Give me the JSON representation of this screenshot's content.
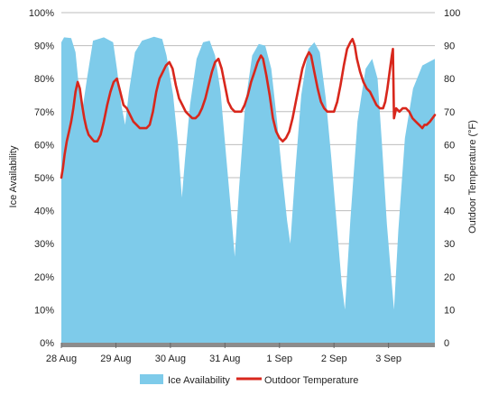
{
  "chart_data": {
    "type": "area",
    "title": "",
    "xlabel": "",
    "ylabel_left": "Ice Availability",
    "ylabel_right": "Outdoor Temperature (°F)",
    "left_ticks": [
      "0%",
      "10%",
      "20%",
      "30%",
      "40%",
      "50%",
      "60%",
      "70%",
      "80%",
      "90%",
      "100%"
    ],
    "right_ticks": [
      "0",
      "10",
      "20",
      "30",
      "40",
      "50",
      "60",
      "70",
      "80",
      "90",
      "100"
    ],
    "ylim_left": [
      0,
      100
    ],
    "ylim_right": [
      0,
      100
    ],
    "x_range_days": [
      0,
      6.85
    ],
    "x_ticks": [
      {
        "label": "28 Aug",
        "day": 0
      },
      {
        "label": "29 Aug",
        "day": 1
      },
      {
        "label": "30 Aug",
        "day": 2
      },
      {
        "label": "31 Aug",
        "day": 3
      },
      {
        "label": "1 Sep",
        "day": 4
      },
      {
        "label": "2 Sep",
        "day": 5
      },
      {
        "label": "3 Sep",
        "day": 6
      }
    ],
    "grid": true,
    "legend_position": "bottom",
    "series": [
      {
        "name": "Ice Availability",
        "kind": "area",
        "color": "#7ecbea",
        "axis": "left",
        "points": [
          [
            0.0,
            91
          ],
          [
            0.05,
            92.5
          ],
          [
            0.18,
            92.3
          ],
          [
            0.26,
            88
          ],
          [
            0.33,
            76
          ],
          [
            0.38,
            70
          ],
          [
            0.47,
            80
          ],
          [
            0.58,
            91.5
          ],
          [
            0.78,
            92.5
          ],
          [
            0.95,
            91
          ],
          [
            1.02,
            83
          ],
          [
            1.1,
            72
          ],
          [
            1.17,
            66
          ],
          [
            1.24,
            76
          ],
          [
            1.35,
            88
          ],
          [
            1.48,
            91.5
          ],
          [
            1.7,
            92.7
          ],
          [
            1.85,
            92
          ],
          [
            1.93,
            87
          ],
          [
            2.05,
            75
          ],
          [
            2.14,
            60
          ],
          [
            2.21,
            44
          ],
          [
            2.27,
            56
          ],
          [
            2.36,
            72
          ],
          [
            2.48,
            86
          ],
          [
            2.6,
            91
          ],
          [
            2.72,
            91.5
          ],
          [
            2.82,
            87
          ],
          [
            2.92,
            76
          ],
          [
            3.02,
            57
          ],
          [
            3.11,
            40
          ],
          [
            3.18,
            26
          ],
          [
            3.26,
            47
          ],
          [
            3.37,
            72
          ],
          [
            3.5,
            87
          ],
          [
            3.62,
            90.5
          ],
          [
            3.74,
            90
          ],
          [
            3.85,
            83
          ],
          [
            3.95,
            68
          ],
          [
            4.05,
            51
          ],
          [
            4.14,
            37
          ],
          [
            4.2,
            30
          ],
          [
            4.29,
            52
          ],
          [
            4.4,
            75
          ],
          [
            4.53,
            89
          ],
          [
            4.64,
            91
          ],
          [
            4.74,
            88
          ],
          [
            4.85,
            74
          ],
          [
            4.95,
            56
          ],
          [
            5.05,
            36
          ],
          [
            5.14,
            18
          ],
          [
            5.2,
            10
          ],
          [
            5.3,
            37
          ],
          [
            5.43,
            67
          ],
          [
            5.58,
            83
          ],
          [
            5.7,
            86
          ],
          [
            5.8,
            80
          ],
          [
            5.88,
            60
          ],
          [
            5.97,
            36
          ],
          [
            6.05,
            20
          ],
          [
            6.1,
            10
          ],
          [
            6.18,
            34
          ],
          [
            6.3,
            62
          ],
          [
            6.45,
            77
          ],
          [
            6.62,
            84
          ],
          [
            6.85,
            86
          ]
        ]
      },
      {
        "name": "Outdoor Temperature",
        "kind": "line",
        "color": "#d8271c",
        "axis": "right",
        "points": [
          [
            0.0,
            50
          ],
          [
            0.03,
            53
          ],
          [
            0.06,
            57
          ],
          [
            0.1,
            61
          ],
          [
            0.14,
            64
          ],
          [
            0.18,
            67
          ],
          [
            0.22,
            71
          ],
          [
            0.26,
            76
          ],
          [
            0.3,
            79
          ],
          [
            0.34,
            77
          ],
          [
            0.38,
            72
          ],
          [
            0.42,
            68
          ],
          [
            0.46,
            65
          ],
          [
            0.5,
            63
          ],
          [
            0.55,
            62
          ],
          [
            0.6,
            61
          ],
          [
            0.66,
            61
          ],
          [
            0.72,
            63
          ],
          [
            0.78,
            67
          ],
          [
            0.84,
            72
          ],
          [
            0.9,
            76
          ],
          [
            0.96,
            79
          ],
          [
            1.02,
            80
          ],
          [
            1.08,
            76
          ],
          [
            1.14,
            72
          ],
          [
            1.2,
            71
          ],
          [
            1.26,
            69
          ],
          [
            1.32,
            67
          ],
          [
            1.38,
            66
          ],
          [
            1.44,
            65
          ],
          [
            1.5,
            65
          ],
          [
            1.56,
            65
          ],
          [
            1.62,
            66
          ],
          [
            1.68,
            70
          ],
          [
            1.74,
            76
          ],
          [
            1.8,
            80
          ],
          [
            1.86,
            82
          ],
          [
            1.92,
            84
          ],
          [
            1.98,
            85
          ],
          [
            2.04,
            83
          ],
          [
            2.1,
            78
          ],
          [
            2.16,
            74
          ],
          [
            2.22,
            72
          ],
          [
            2.28,
            70
          ],
          [
            2.34,
            69
          ],
          [
            2.4,
            68
          ],
          [
            2.46,
            68
          ],
          [
            2.52,
            69
          ],
          [
            2.58,
            71
          ],
          [
            2.64,
            74
          ],
          [
            2.7,
            78
          ],
          [
            2.76,
            82
          ],
          [
            2.82,
            85
          ],
          [
            2.88,
            86
          ],
          [
            2.94,
            83
          ],
          [
            3.0,
            78
          ],
          [
            3.06,
            73
          ],
          [
            3.12,
            71
          ],
          [
            3.18,
            70
          ],
          [
            3.24,
            70
          ],
          [
            3.3,
            70
          ],
          [
            3.36,
            72
          ],
          [
            3.42,
            75
          ],
          [
            3.48,
            79
          ],
          [
            3.54,
            82
          ],
          [
            3.6,
            85
          ],
          [
            3.66,
            87
          ],
          [
            3.7,
            86
          ],
          [
            3.76,
            81
          ],
          [
            3.82,
            75
          ],
          [
            3.88,
            68
          ],
          [
            3.94,
            64
          ],
          [
            4.0,
            62
          ],
          [
            4.06,
            61
          ],
          [
            4.12,
            62
          ],
          [
            4.18,
            64
          ],
          [
            4.24,
            68
          ],
          [
            4.3,
            73
          ],
          [
            4.36,
            78
          ],
          [
            4.42,
            83
          ],
          [
            4.48,
            86
          ],
          [
            4.54,
            88
          ],
          [
            4.58,
            87
          ],
          [
            4.64,
            82
          ],
          [
            4.7,
            77
          ],
          [
            4.76,
            73
          ],
          [
            4.82,
            71
          ],
          [
            4.88,
            70
          ],
          [
            4.94,
            70
          ],
          [
            5.0,
            70
          ],
          [
            5.06,
            73
          ],
          [
            5.12,
            78
          ],
          [
            5.18,
            84
          ],
          [
            5.24,
            89
          ],
          [
            5.3,
            91
          ],
          [
            5.34,
            92
          ],
          [
            5.38,
            90
          ],
          [
            5.42,
            86
          ],
          [
            5.48,
            82
          ],
          [
            5.54,
            79
          ],
          [
            5.6,
            77
          ],
          [
            5.66,
            76
          ],
          [
            5.72,
            74
          ],
          [
            5.78,
            72
          ],
          [
            5.84,
            71
          ],
          [
            5.9,
            71
          ],
          [
            5.94,
            73
          ],
          [
            5.98,
            77
          ],
          [
            6.02,
            82
          ],
          [
            6.06,
            87
          ],
          [
            6.08,
            89
          ],
          [
            6.1,
            68
          ],
          [
            6.14,
            71
          ],
          [
            6.2,
            70
          ],
          [
            6.26,
            71
          ],
          [
            6.32,
            71
          ],
          [
            6.38,
            70
          ],
          [
            6.44,
            68
          ],
          [
            6.5,
            67
          ],
          [
            6.56,
            66
          ],
          [
            6.62,
            65
          ],
          [
            6.66,
            66
          ],
          [
            6.7,
            66
          ],
          [
            6.76,
            67
          ],
          [
            6.85,
            69
          ]
        ]
      }
    ]
  }
}
